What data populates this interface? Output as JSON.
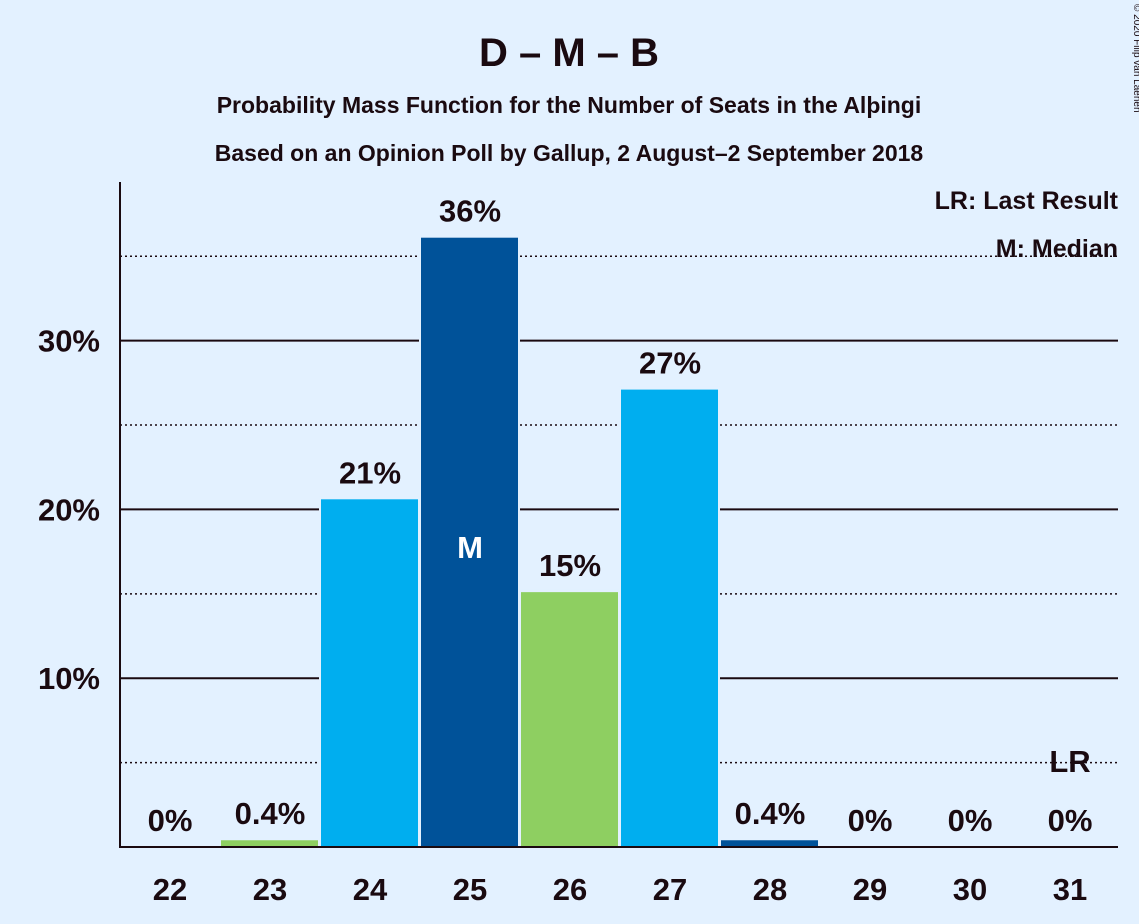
{
  "copyright": "© 2020 Filip van Laenen",
  "chart_data": {
    "type": "bar",
    "title": "D – M – B",
    "subtitle": "Probability Mass Function for the Number of Seats in the Alþingi",
    "subtitle2": "Based on an Opinion Poll by Gallup, 2 August–2 September 2018",
    "categories": [
      "22",
      "23",
      "24",
      "25",
      "26",
      "27",
      "28",
      "29",
      "30",
      "31"
    ],
    "values": [
      0,
      0.4,
      20.6,
      36.1,
      15.1,
      27.1,
      0.4,
      0,
      0,
      0
    ],
    "value_labels": [
      "0%",
      "0.4%",
      "21%",
      "36%",
      "15%",
      "27%",
      "0.4%",
      "0%",
      "0%",
      "0%"
    ],
    "bar_colors": [
      "#00aeef",
      "#8ecf61",
      "#00aeef",
      "#005299",
      "#8ecf61",
      "#00aeef",
      "#005299",
      "#00aeef",
      "#00aeef",
      "#00aeef"
    ],
    "yticks": [
      10,
      20,
      30
    ],
    "ytick_labels": [
      "10%",
      "20%",
      "30%"
    ],
    "ylim": [
      0,
      39.4
    ],
    "gridlines_dotted": [
      5,
      15,
      25,
      35
    ],
    "median_category": "25",
    "median_marker": "M",
    "last_result_category": "31",
    "last_result_marker": "LR",
    "legend": [
      "LR: Last Result",
      "M: Median"
    ],
    "legend_position": "top-right"
  }
}
